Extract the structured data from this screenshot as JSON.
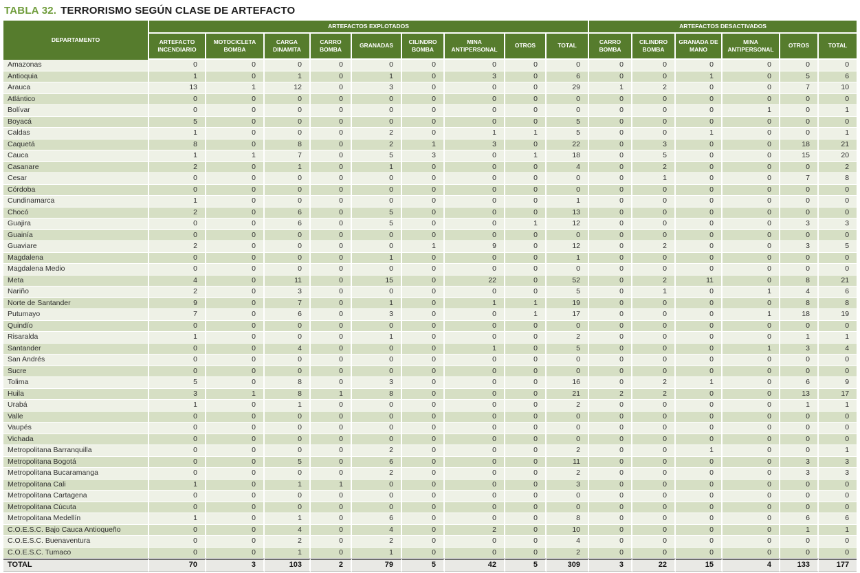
{
  "title": {
    "prefix": "TABLA",
    "number": "32.",
    "text": "TERRORISMO SEGÚN CLASE DE ARTEFACTO"
  },
  "colors": {
    "title_green": "#6f9c3b",
    "header_green": "#567c2d",
    "row_light": "#eef1e6",
    "row_dark": "#d6dfc4",
    "total_row_bg": "#e9e9e5"
  },
  "table": {
    "department_header": "DEPARTAMENTO",
    "groups": [
      {
        "label": "ARTEFACTOS EXPLOTADOS",
        "columns": [
          "ARTEFACTO INCENDIARIO",
          "MOTOCICLETA BOMBA",
          "CARGA DINAMITA",
          "CARRO BOMBA",
          "GRANADAS",
          "CILINDRO BOMBA",
          "MINA ANTIPERSONAL",
          "OTROS",
          "TOTAL"
        ]
      },
      {
        "label": "ARTEFACTOS DESACTIVADOS",
        "columns": [
          "CARRO BOMBA",
          "CILINDRO BOMBA",
          "GRANADA DE MANO",
          "MINA ANTIPERSONAL",
          "OTROS",
          "TOTAL"
        ]
      }
    ],
    "rows": [
      {
        "department": "Amazonas",
        "values": [
          0,
          0,
          0,
          0,
          0,
          0,
          0,
          0,
          0,
          0,
          0,
          0,
          0,
          0,
          0
        ]
      },
      {
        "department": "Antioquia",
        "values": [
          1,
          0,
          1,
          0,
          1,
          0,
          3,
          0,
          6,
          0,
          0,
          1,
          0,
          5,
          6
        ]
      },
      {
        "department": "Arauca",
        "values": [
          13,
          1,
          12,
          0,
          3,
          0,
          0,
          0,
          29,
          1,
          2,
          0,
          0,
          7,
          10
        ]
      },
      {
        "department": "Atlántico",
        "values": [
          0,
          0,
          0,
          0,
          0,
          0,
          0,
          0,
          0,
          0,
          0,
          0,
          0,
          0,
          0
        ]
      },
      {
        "department": "Bolívar",
        "values": [
          0,
          0,
          0,
          0,
          0,
          0,
          0,
          0,
          0,
          0,
          0,
          0,
          1,
          0,
          1
        ]
      },
      {
        "department": "Boyacá",
        "values": [
          5,
          0,
          0,
          0,
          0,
          0,
          0,
          0,
          5,
          0,
          0,
          0,
          0,
          0,
          0
        ]
      },
      {
        "department": "Caldas",
        "values": [
          1,
          0,
          0,
          0,
          2,
          0,
          1,
          1,
          5,
          0,
          0,
          1,
          0,
          0,
          1
        ]
      },
      {
        "department": "Caquetá",
        "values": [
          8,
          0,
          8,
          0,
          2,
          1,
          3,
          0,
          22,
          0,
          3,
          0,
          0,
          18,
          21
        ]
      },
      {
        "department": "Cauca",
        "values": [
          1,
          1,
          7,
          0,
          5,
          3,
          0,
          1,
          18,
          0,
          5,
          0,
          0,
          15,
          20
        ]
      },
      {
        "department": "Casanare",
        "values": [
          2,
          0,
          1,
          0,
          1,
          0,
          0,
          0,
          4,
          0,
          2,
          0,
          0,
          0,
          2
        ]
      },
      {
        "department": "Cesar",
        "values": [
          0,
          0,
          0,
          0,
          0,
          0,
          0,
          0,
          0,
          0,
          1,
          0,
          0,
          7,
          8
        ]
      },
      {
        "department": "Córdoba",
        "values": [
          0,
          0,
          0,
          0,
          0,
          0,
          0,
          0,
          0,
          0,
          0,
          0,
          0,
          0,
          0
        ]
      },
      {
        "department": "Cundinamarca",
        "values": [
          1,
          0,
          0,
          0,
          0,
          0,
          0,
          0,
          1,
          0,
          0,
          0,
          0,
          0,
          0
        ]
      },
      {
        "department": "Chocó",
        "values": [
          2,
          0,
          6,
          0,
          5,
          0,
          0,
          0,
          13,
          0,
          0,
          0,
          0,
          0,
          0
        ]
      },
      {
        "department": "Guajira",
        "values": [
          0,
          0,
          6,
          0,
          5,
          0,
          0,
          1,
          12,
          0,
          0,
          0,
          0,
          3,
          3
        ]
      },
      {
        "department": "Guainía",
        "values": [
          0,
          0,
          0,
          0,
          0,
          0,
          0,
          0,
          0,
          0,
          0,
          0,
          0,
          0,
          0
        ]
      },
      {
        "department": "Guaviare",
        "values": [
          2,
          0,
          0,
          0,
          0,
          1,
          9,
          0,
          12,
          0,
          2,
          0,
          0,
          3,
          5
        ]
      },
      {
        "department": "Magdalena",
        "values": [
          0,
          0,
          0,
          0,
          1,
          0,
          0,
          0,
          1,
          0,
          0,
          0,
          0,
          0,
          0
        ]
      },
      {
        "department": "Magdalena Medio",
        "values": [
          0,
          0,
          0,
          0,
          0,
          0,
          0,
          0,
          0,
          0,
          0,
          0,
          0,
          0,
          0
        ]
      },
      {
        "department": "Meta",
        "values": [
          4,
          0,
          11,
          0,
          15,
          0,
          22,
          0,
          52,
          0,
          2,
          11,
          0,
          8,
          21
        ]
      },
      {
        "department": "Nariño",
        "values": [
          2,
          0,
          3,
          0,
          0,
          0,
          0,
          0,
          5,
          0,
          1,
          0,
          1,
          4,
          6
        ]
      },
      {
        "department": "Norte de Santander",
        "values": [
          9,
          0,
          7,
          0,
          1,
          0,
          1,
          1,
          19,
          0,
          0,
          0,
          0,
          8,
          8
        ]
      },
      {
        "department": "Putumayo",
        "values": [
          7,
          0,
          6,
          0,
          3,
          0,
          0,
          1,
          17,
          0,
          0,
          0,
          1,
          18,
          19
        ]
      },
      {
        "department": "Quindío",
        "values": [
          0,
          0,
          0,
          0,
          0,
          0,
          0,
          0,
          0,
          0,
          0,
          0,
          0,
          0,
          0
        ]
      },
      {
        "department": "Risaralda",
        "values": [
          1,
          0,
          0,
          0,
          1,
          0,
          0,
          0,
          2,
          0,
          0,
          0,
          0,
          1,
          1
        ]
      },
      {
        "department": "Santander",
        "values": [
          0,
          0,
          4,
          0,
          0,
          0,
          1,
          0,
          5,
          0,
          0,
          0,
          1,
          3,
          4
        ]
      },
      {
        "department": "San Andrés",
        "values": [
          0,
          0,
          0,
          0,
          0,
          0,
          0,
          0,
          0,
          0,
          0,
          0,
          0,
          0,
          0
        ]
      },
      {
        "department": "Sucre",
        "values": [
          0,
          0,
          0,
          0,
          0,
          0,
          0,
          0,
          0,
          0,
          0,
          0,
          0,
          0,
          0
        ]
      },
      {
        "department": "Tolima",
        "values": [
          5,
          0,
          8,
          0,
          3,
          0,
          0,
          0,
          16,
          0,
          2,
          1,
          0,
          6,
          9
        ]
      },
      {
        "department": "Huila",
        "values": [
          3,
          1,
          8,
          1,
          8,
          0,
          0,
          0,
          21,
          2,
          2,
          0,
          0,
          13,
          17
        ]
      },
      {
        "department": "Urabá",
        "values": [
          1,
          0,
          1,
          0,
          0,
          0,
          0,
          0,
          2,
          0,
          0,
          0,
          0,
          1,
          1
        ]
      },
      {
        "department": "Valle",
        "values": [
          0,
          0,
          0,
          0,
          0,
          0,
          0,
          0,
          0,
          0,
          0,
          0,
          0,
          0,
          0
        ]
      },
      {
        "department": "Vaupés",
        "values": [
          0,
          0,
          0,
          0,
          0,
          0,
          0,
          0,
          0,
          0,
          0,
          0,
          0,
          0,
          0
        ]
      },
      {
        "department": "Vichada",
        "values": [
          0,
          0,
          0,
          0,
          0,
          0,
          0,
          0,
          0,
          0,
          0,
          0,
          0,
          0,
          0
        ]
      },
      {
        "department": "Metropolitana Barranquilla",
        "values": [
          0,
          0,
          0,
          0,
          2,
          0,
          0,
          0,
          2,
          0,
          0,
          1,
          0,
          0,
          1
        ]
      },
      {
        "department": "Metropolitana Bogotá",
        "values": [
          0,
          0,
          5,
          0,
          6,
          0,
          0,
          0,
          11,
          0,
          0,
          0,
          0,
          3,
          3
        ]
      },
      {
        "department": "Metropolitana Bucaramanga",
        "values": [
          0,
          0,
          0,
          0,
          2,
          0,
          0,
          0,
          2,
          0,
          0,
          0,
          0,
          3,
          3
        ]
      },
      {
        "department": "Metropolitana Cali",
        "values": [
          1,
          0,
          1,
          1,
          0,
          0,
          0,
          0,
          3,
          0,
          0,
          0,
          0,
          0,
          0
        ]
      },
      {
        "department": "Metropolitana Cartagena",
        "values": [
          0,
          0,
          0,
          0,
          0,
          0,
          0,
          0,
          0,
          0,
          0,
          0,
          0,
          0,
          0
        ]
      },
      {
        "department": "Metropolitana Cúcuta",
        "values": [
          0,
          0,
          0,
          0,
          0,
          0,
          0,
          0,
          0,
          0,
          0,
          0,
          0,
          0,
          0
        ]
      },
      {
        "department": "Metropolitana Medellín",
        "values": [
          1,
          0,
          1,
          0,
          6,
          0,
          0,
          0,
          8,
          0,
          0,
          0,
          0,
          6,
          6
        ]
      },
      {
        "department": "C.O.E.S.C. Bajo Cauca Antioqueño",
        "values": [
          0,
          0,
          4,
          0,
          4,
          0,
          2,
          0,
          10,
          0,
          0,
          0,
          0,
          1,
          1
        ]
      },
      {
        "department": "C.O.E.S.C. Buenaventura",
        "values": [
          0,
          0,
          2,
          0,
          2,
          0,
          0,
          0,
          4,
          0,
          0,
          0,
          0,
          0,
          0
        ]
      },
      {
        "department": "C.O.E.S.C. Tumaco",
        "values": [
          0,
          0,
          1,
          0,
          1,
          0,
          0,
          0,
          2,
          0,
          0,
          0,
          0,
          0,
          0
        ]
      }
    ],
    "total_row": {
      "department": "TOTAL",
      "values": [
        70,
        3,
        103,
        2,
        79,
        5,
        42,
        5,
        309,
        3,
        22,
        15,
        4,
        133,
        177
      ]
    }
  }
}
